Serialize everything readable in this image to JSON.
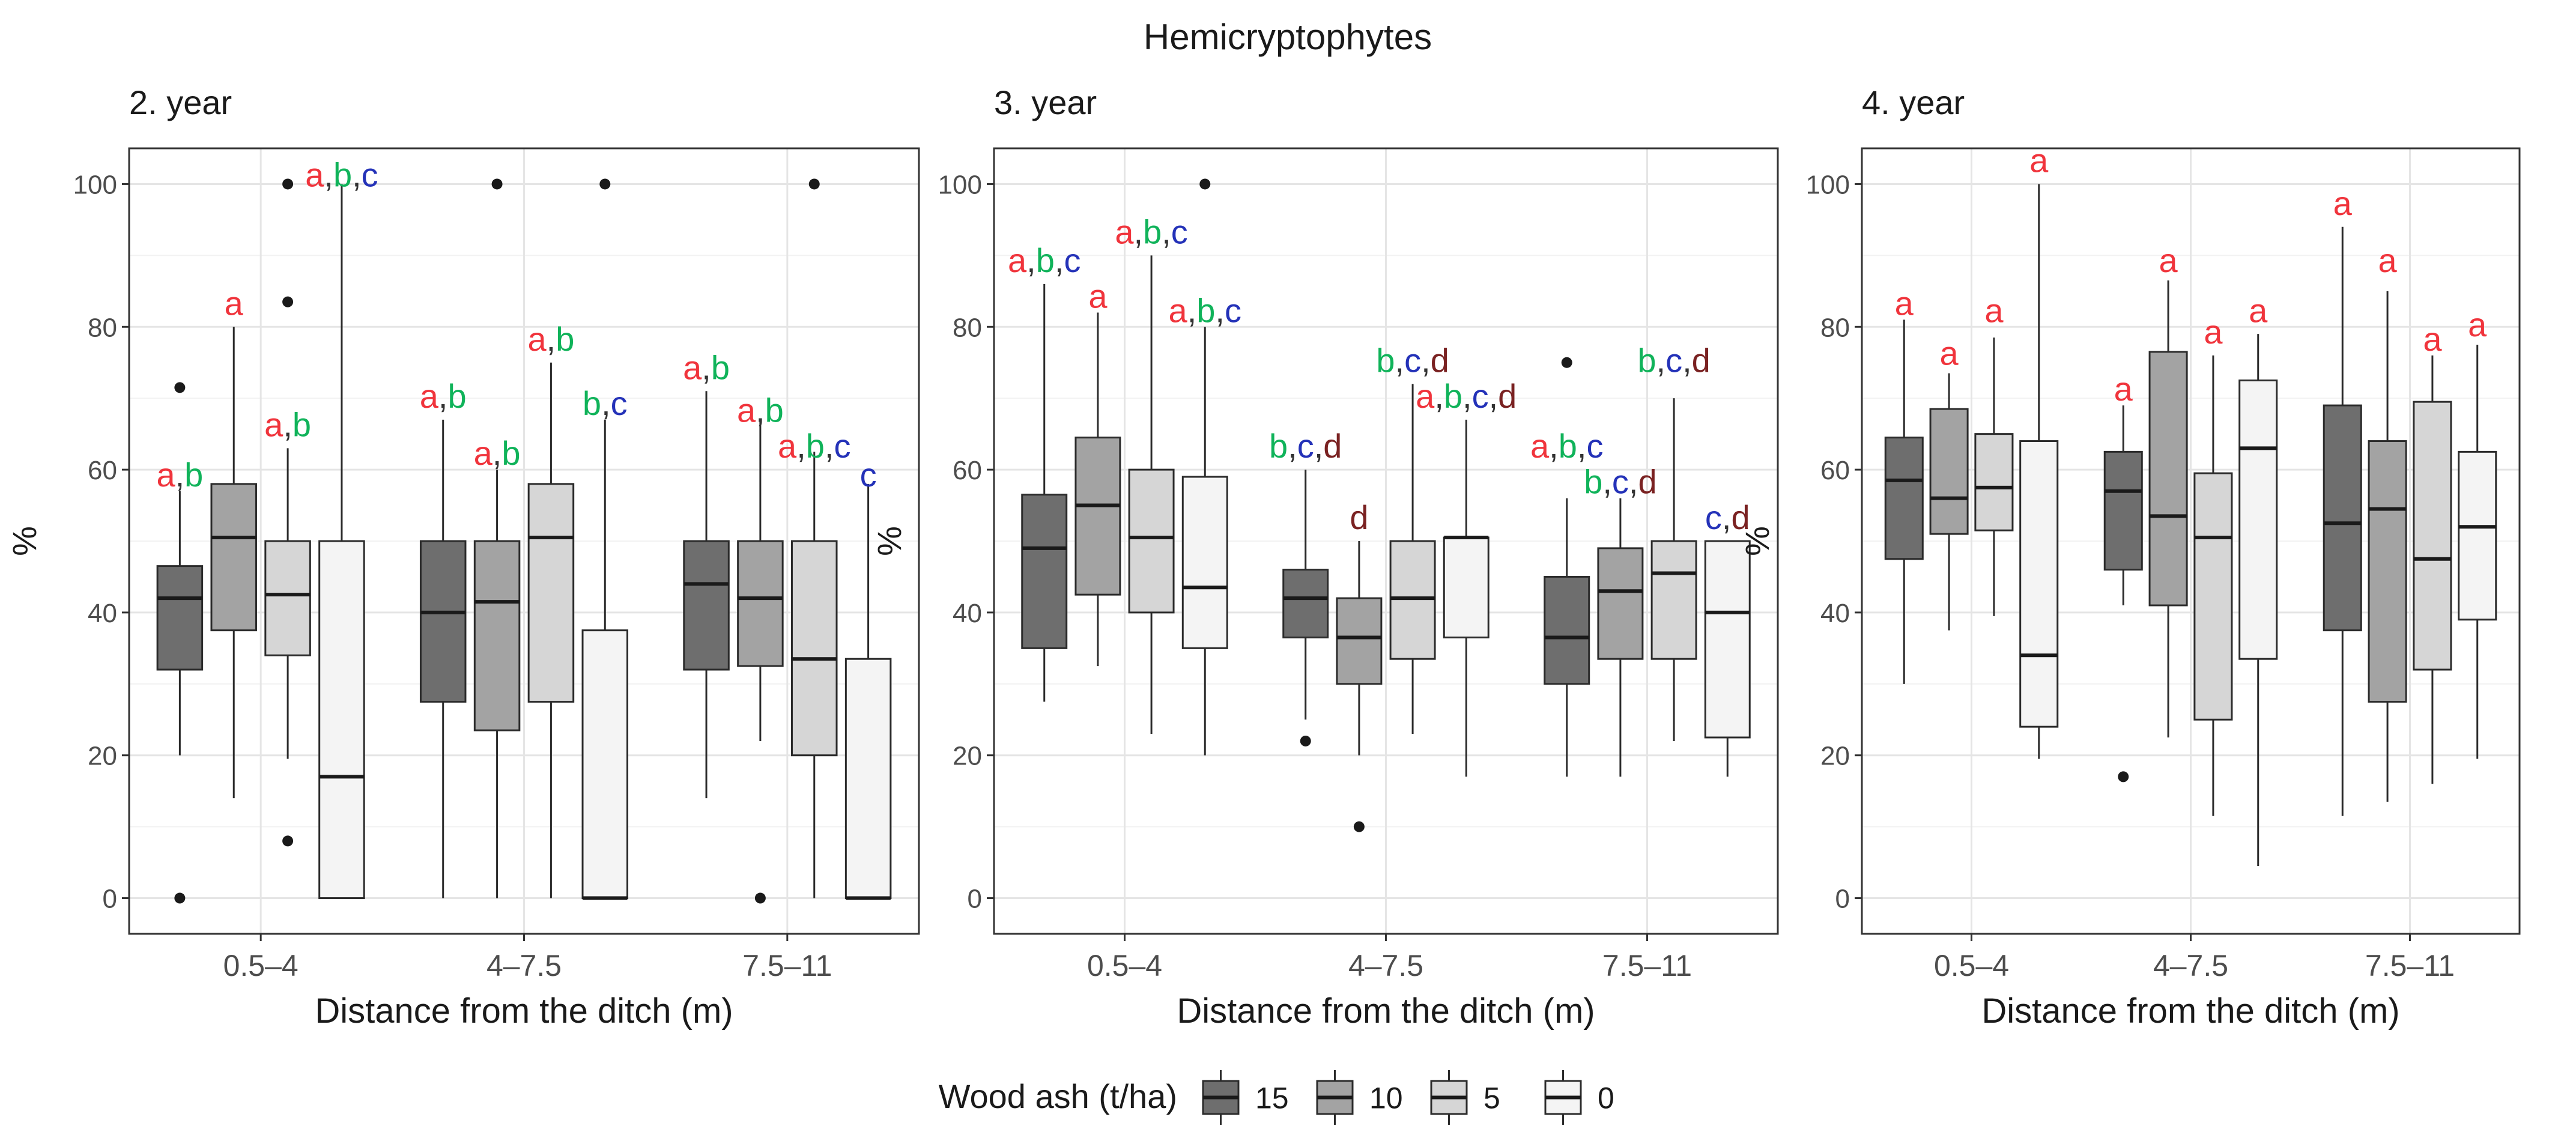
{
  "chart_data": {
    "type": "boxplot",
    "title": "Hemicryptophytes",
    "xlabel": "Distance from the ditch (m)",
    "ylabel": "%",
    "ylim": [
      -5,
      105
    ],
    "yticks": [
      0,
      20,
      40,
      60,
      80,
      100
    ],
    "categories": [
      "0.5–4",
      "4–7.5",
      "7.5–11"
    ],
    "legend": {
      "title": "Wood ash (t/ha)",
      "position": "bottom",
      "entries": [
        {
          "label": "15",
          "color": "#6e6e6e"
        },
        {
          "label": "10",
          "color": "#a3a3a3"
        },
        {
          "label": "5",
          "color": "#d6d6d6"
        },
        {
          "label": "0",
          "color": "#f4f4f4"
        }
      ]
    },
    "letter_colors": {
      "a": "#f0343c",
      "b": "#10b35a",
      "c": "#2432b8",
      "d": "#7a2222"
    },
    "panels": [
      {
        "title": "2. year",
        "groups": [
          {
            "category": "0.5–4",
            "boxes": [
              {
                "level": "15",
                "min": 20,
                "q1": 32,
                "median": 42,
                "q3": 46.5,
                "max": 57,
                "outliers": [
                  0,
                  71.5
                ],
                "letters": "a,b",
                "label_y": 57
              },
              {
                "level": "10",
                "min": 14,
                "q1": 37.5,
                "median": 50.5,
                "q3": 58,
                "max": 80,
                "outliers": [],
                "letters": "a",
                "label_y": 81
              },
              {
                "level": "5",
                "min": 19.5,
                "q1": 34,
                "median": 42.5,
                "q3": 50,
                "max": 63,
                "outliers": [
                  8,
                  83.5,
                  100
                ],
                "letters": "a,b",
                "label_y": 64
              },
              {
                "level": "0",
                "min": 0,
                "q1": 0,
                "median": 17,
                "q3": 50,
                "max": 100,
                "outliers": [],
                "letters": "a,b,c",
                "label_y": 99
              }
            ]
          },
          {
            "category": "4–7.5",
            "boxes": [
              {
                "level": "15",
                "min": 0,
                "q1": 27.5,
                "median": 40,
                "q3": 50,
                "max": 67,
                "outliers": [],
                "letters": "a,b",
                "label_y": 68
              },
              {
                "level": "10",
                "min": 0,
                "q1": 23.5,
                "median": 41.5,
                "q3": 50,
                "max": 60,
                "outliers": [
                  100
                ],
                "letters": "a,b",
                "label_y": 60
              },
              {
                "level": "5",
                "min": 0,
                "q1": 27.5,
                "median": 50.5,
                "q3": 58,
                "max": 75,
                "outliers": [],
                "letters": "a,b",
                "label_y": 76
              },
              {
                "level": "0",
                "min": 0,
                "q1": 0,
                "median": 0,
                "q3": 37.5,
                "max": 67,
                "outliers": [
                  100
                ],
                "letters": "b,c",
                "label_y": 67
              }
            ]
          },
          {
            "category": "7.5–11",
            "boxes": [
              {
                "level": "15",
                "min": 14,
                "q1": 32,
                "median": 44,
                "q3": 50,
                "max": 71,
                "outliers": [],
                "letters": "a,b",
                "label_y": 72
              },
              {
                "level": "10",
                "min": 22,
                "q1": 32.5,
                "median": 42,
                "q3": 50,
                "max": 67,
                "outliers": [
                  0
                ],
                "letters": "a,b",
                "label_y": 66
              },
              {
                "level": "5",
                "min": 0,
                "q1": 20,
                "median": 33.5,
                "q3": 50,
                "max": 62.5,
                "outliers": [
                  100
                ],
                "letters": "a,b,c",
                "label_y": 61
              },
              {
                "level": "0",
                "min": 0,
                "q1": 0,
                "median": 0,
                "q3": 33.5,
                "max": 58,
                "outliers": [],
                "letters": "c",
                "label_y": 57
              }
            ]
          }
        ]
      },
      {
        "title": "3. year",
        "groups": [
          {
            "category": "0.5–4",
            "boxes": [
              {
                "level": "15",
                "min": 27.5,
                "q1": 35,
                "median": 49,
                "q3": 56.5,
                "max": 86,
                "outliers": [],
                "letters": "a,b,c",
                "label_y": 87
              },
              {
                "level": "10",
                "min": 32.5,
                "q1": 42.5,
                "median": 55,
                "q3": 64.5,
                "max": 82,
                "outliers": [],
                "letters": "a",
                "label_y": 82
              },
              {
                "level": "5",
                "min": 23,
                "q1": 40,
                "median": 50.5,
                "q3": 60,
                "max": 90,
                "outliers": [],
                "letters": "a,b,c",
                "label_y": 91
              },
              {
                "level": "0",
                "min": 20,
                "q1": 35,
                "median": 43.5,
                "q3": 59,
                "max": 80,
                "outliers": [
                  100
                ],
                "letters": "a,b,c",
                "label_y": 80
              }
            ]
          },
          {
            "category": "4–7.5",
            "boxes": [
              {
                "level": "15",
                "min": 25,
                "q1": 36.5,
                "median": 42,
                "q3": 46,
                "max": 60,
                "outliers": [
                  22
                ],
                "letters": "b,c,d",
                "label_y": 61
              },
              {
                "level": "10",
                "min": 20,
                "q1": 30,
                "median": 36.5,
                "q3": 42,
                "max": 50,
                "outliers": [
                  10
                ],
                "letters": "d",
                "label_y": 51
              },
              {
                "level": "5",
                "min": 23,
                "q1": 33.5,
                "median": 42,
                "q3": 50,
                "max": 72,
                "outliers": [],
                "letters": "b,c,d",
                "label_y": 73
              },
              {
                "level": "0",
                "min": 17,
                "q1": 36.5,
                "median": 50.5,
                "q3": 50.5,
                "max": 67,
                "outliers": [],
                "letters": "a,b,c,d",
                "label_y": 68
              }
            ]
          },
          {
            "category": "7.5–11",
            "boxes": [
              {
                "level": "15",
                "min": 17,
                "q1": 30,
                "median": 36.5,
                "q3": 45,
                "max": 56,
                "outliers": [
                  75
                ],
                "letters": "a,b,c",
                "label_y": 61
              },
              {
                "level": "10",
                "min": 17,
                "q1": 33.5,
                "median": 43,
                "q3": 49,
                "max": 56,
                "outliers": [],
                "letters": "b,c,d",
                "label_y": 56
              },
              {
                "level": "5",
                "min": 22,
                "q1": 33.5,
                "median": 45.5,
                "q3": 50,
                "max": 70,
                "outliers": [],
                "letters": "b,c,d",
                "label_y": 73
              },
              {
                "level": "0",
                "min": 17,
                "q1": 22.5,
                "median": 40,
                "q3": 50,
                "max": 50,
                "outliers": [],
                "letters": "c,d",
                "label_y": 51
              }
            ]
          }
        ]
      },
      {
        "title": "4. year",
        "groups": [
          {
            "category": "0.5–4",
            "boxes": [
              {
                "level": "15",
                "min": 30,
                "q1": 47.5,
                "median": 58.5,
                "q3": 64.5,
                "max": 81,
                "outliers": [],
                "letters": "a",
                "label_y": 81
              },
              {
                "level": "10",
                "min": 37.5,
                "q1": 51,
                "median": 56,
                "q3": 68.5,
                "max": 73.5,
                "outliers": [],
                "letters": "a",
                "label_y": 74
              },
              {
                "level": "5",
                "min": 39.5,
                "q1": 51.5,
                "median": 57.5,
                "q3": 65,
                "max": 78.5,
                "outliers": [],
                "letters": "a",
                "label_y": 80
              },
              {
                "level": "0",
                "min": 19.5,
                "q1": 24,
                "median": 34,
                "q3": 64,
                "max": 100,
                "outliers": [],
                "letters": "a",
                "label_y": 101
              }
            ]
          },
          {
            "category": "4–7.5",
            "boxes": [
              {
                "level": "15",
                "min": 41,
                "q1": 46,
                "median": 57,
                "q3": 62.5,
                "max": 69,
                "outliers": [
                  17
                ],
                "letters": "a",
                "label_y": 69
              },
              {
                "level": "10",
                "min": 22.5,
                "q1": 41,
                "median": 53.5,
                "q3": 76.5,
                "max": 86.5,
                "outliers": [],
                "letters": "a",
                "label_y": 87
              },
              {
                "level": "5",
                "min": 11.5,
                "q1": 25,
                "median": 50.5,
                "q3": 59.5,
                "max": 76,
                "outliers": [],
                "letters": "a",
                "label_y": 77
              },
              {
                "level": "0",
                "min": 4.5,
                "q1": 33.5,
                "median": 63,
                "q3": 72.5,
                "max": 79,
                "outliers": [],
                "letters": "a",
                "label_y": 80
              }
            ]
          },
          {
            "category": "7.5–11",
            "boxes": [
              {
                "level": "15",
                "min": 11.5,
                "q1": 37.5,
                "median": 52.5,
                "q3": 69,
                "max": 94,
                "outliers": [],
                "letters": "a",
                "label_y": 95
              },
              {
                "level": "10",
                "min": 13.5,
                "q1": 27.5,
                "median": 54.5,
                "q3": 64,
                "max": 85,
                "outliers": [],
                "letters": "a",
                "label_y": 87
              },
              {
                "level": "5",
                "min": 16,
                "q1": 32,
                "median": 47.5,
                "q3": 69.5,
                "max": 76,
                "outliers": [],
                "letters": "a",
                "label_y": 76
              },
              {
                "level": "0",
                "min": 19.5,
                "q1": 39,
                "median": 52,
                "q3": 62.5,
                "max": 77.5,
                "outliers": [],
                "letters": "a",
                "label_y": 78
              }
            ]
          }
        ]
      }
    ]
  }
}
